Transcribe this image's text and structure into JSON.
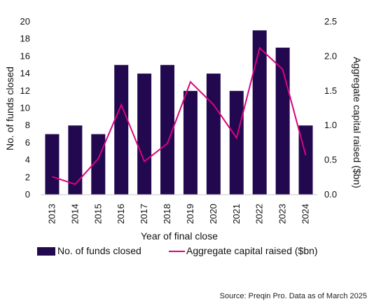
{
  "chart_data": {
    "type": "bar",
    "categories": [
      "2013",
      "2014",
      "2015",
      "2016",
      "2017",
      "2018",
      "2019",
      "2020",
      "2021",
      "2022",
      "2023",
      "2024"
    ],
    "series": [
      {
        "name": "No. of funds closed",
        "type": "bar",
        "axis": "left",
        "color": "#22084f",
        "values": [
          7,
          8,
          7,
          15,
          14,
          15,
          12,
          14,
          12,
          19,
          17,
          8
        ]
      },
      {
        "name": "Aggregate capital raised ($bn)",
        "type": "line",
        "axis": "right",
        "color": "#d9047d",
        "values": [
          0.26,
          0.15,
          0.52,
          1.3,
          0.48,
          0.74,
          1.63,
          1.3,
          0.82,
          2.12,
          1.81,
          0.57
        ]
      }
    ],
    "xlabel": "Year of final close",
    "ylabel": "No. of funds closed",
    "y2label": "Aggregate capital raised ($bn)",
    "ylim": [
      0,
      20
    ],
    "y2lim": [
      0,
      2.5
    ],
    "yticks": [
      "0",
      "2",
      "4",
      "6",
      "8",
      "10",
      "12",
      "14",
      "16",
      "18",
      "20"
    ],
    "y2ticks": [
      "0.0",
      "0.5",
      "1.0",
      "1.5",
      "2.0",
      "2.5"
    ],
    "grid": false,
    "legend_position": "bottom",
    "source": "Source: Preqin Pro. Data as of March 2025"
  }
}
